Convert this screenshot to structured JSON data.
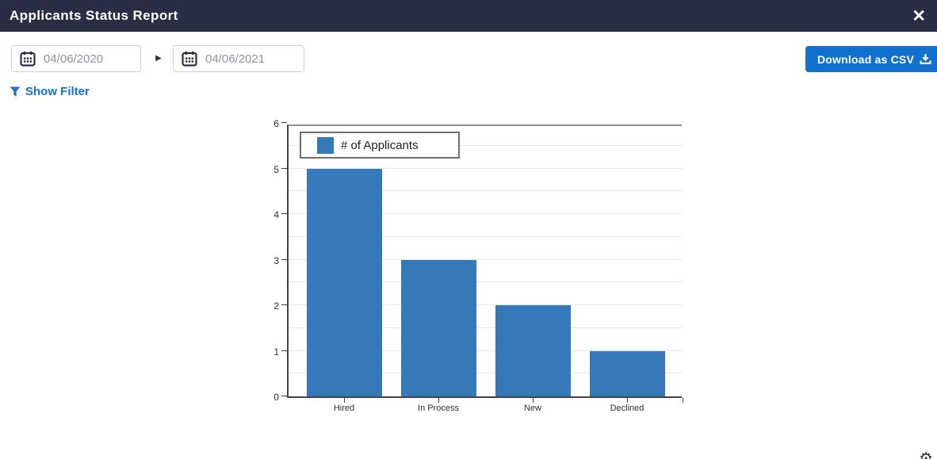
{
  "header": {
    "title": "Applicants Status Report",
    "close_glyph": "✕"
  },
  "toolbar": {
    "date_from": "04/06/2020",
    "date_to": "04/06/2021",
    "range_arrow_glyph": "▶",
    "download_label": "Download as CSV",
    "show_filter_label": "Show Filter"
  },
  "icons": {
    "calendar": "calendar-icon",
    "filter": "filter-funnel-icon",
    "download": "download-tray-icon",
    "close": "close-x-icon",
    "corner_partial": "partial-gear-icon",
    "corner_glyph": "⚙"
  },
  "colors": {
    "header_bg": "#2a2e44",
    "button_blue": "#1271cf",
    "link_blue": "#1673d2",
    "bar_blue": "#3579b8",
    "grid_gray": "#e7e7e7",
    "axis_dark": "#424242"
  },
  "chart_data": {
    "type": "bar",
    "title": "",
    "categories": [
      "Hired",
      "In Process",
      "New",
      "Declined"
    ],
    "values": [
      5,
      3,
      2,
      1
    ],
    "series_label": "# of Applicants",
    "xlabel": "",
    "ylabel": "",
    "ylim": [
      0,
      6
    ],
    "y_ticks": [
      0,
      1,
      2,
      3,
      4,
      5,
      6
    ],
    "gridline_step": 0.5,
    "grid": true,
    "legend_position": "top-left",
    "bar_color": "#3579b8"
  }
}
